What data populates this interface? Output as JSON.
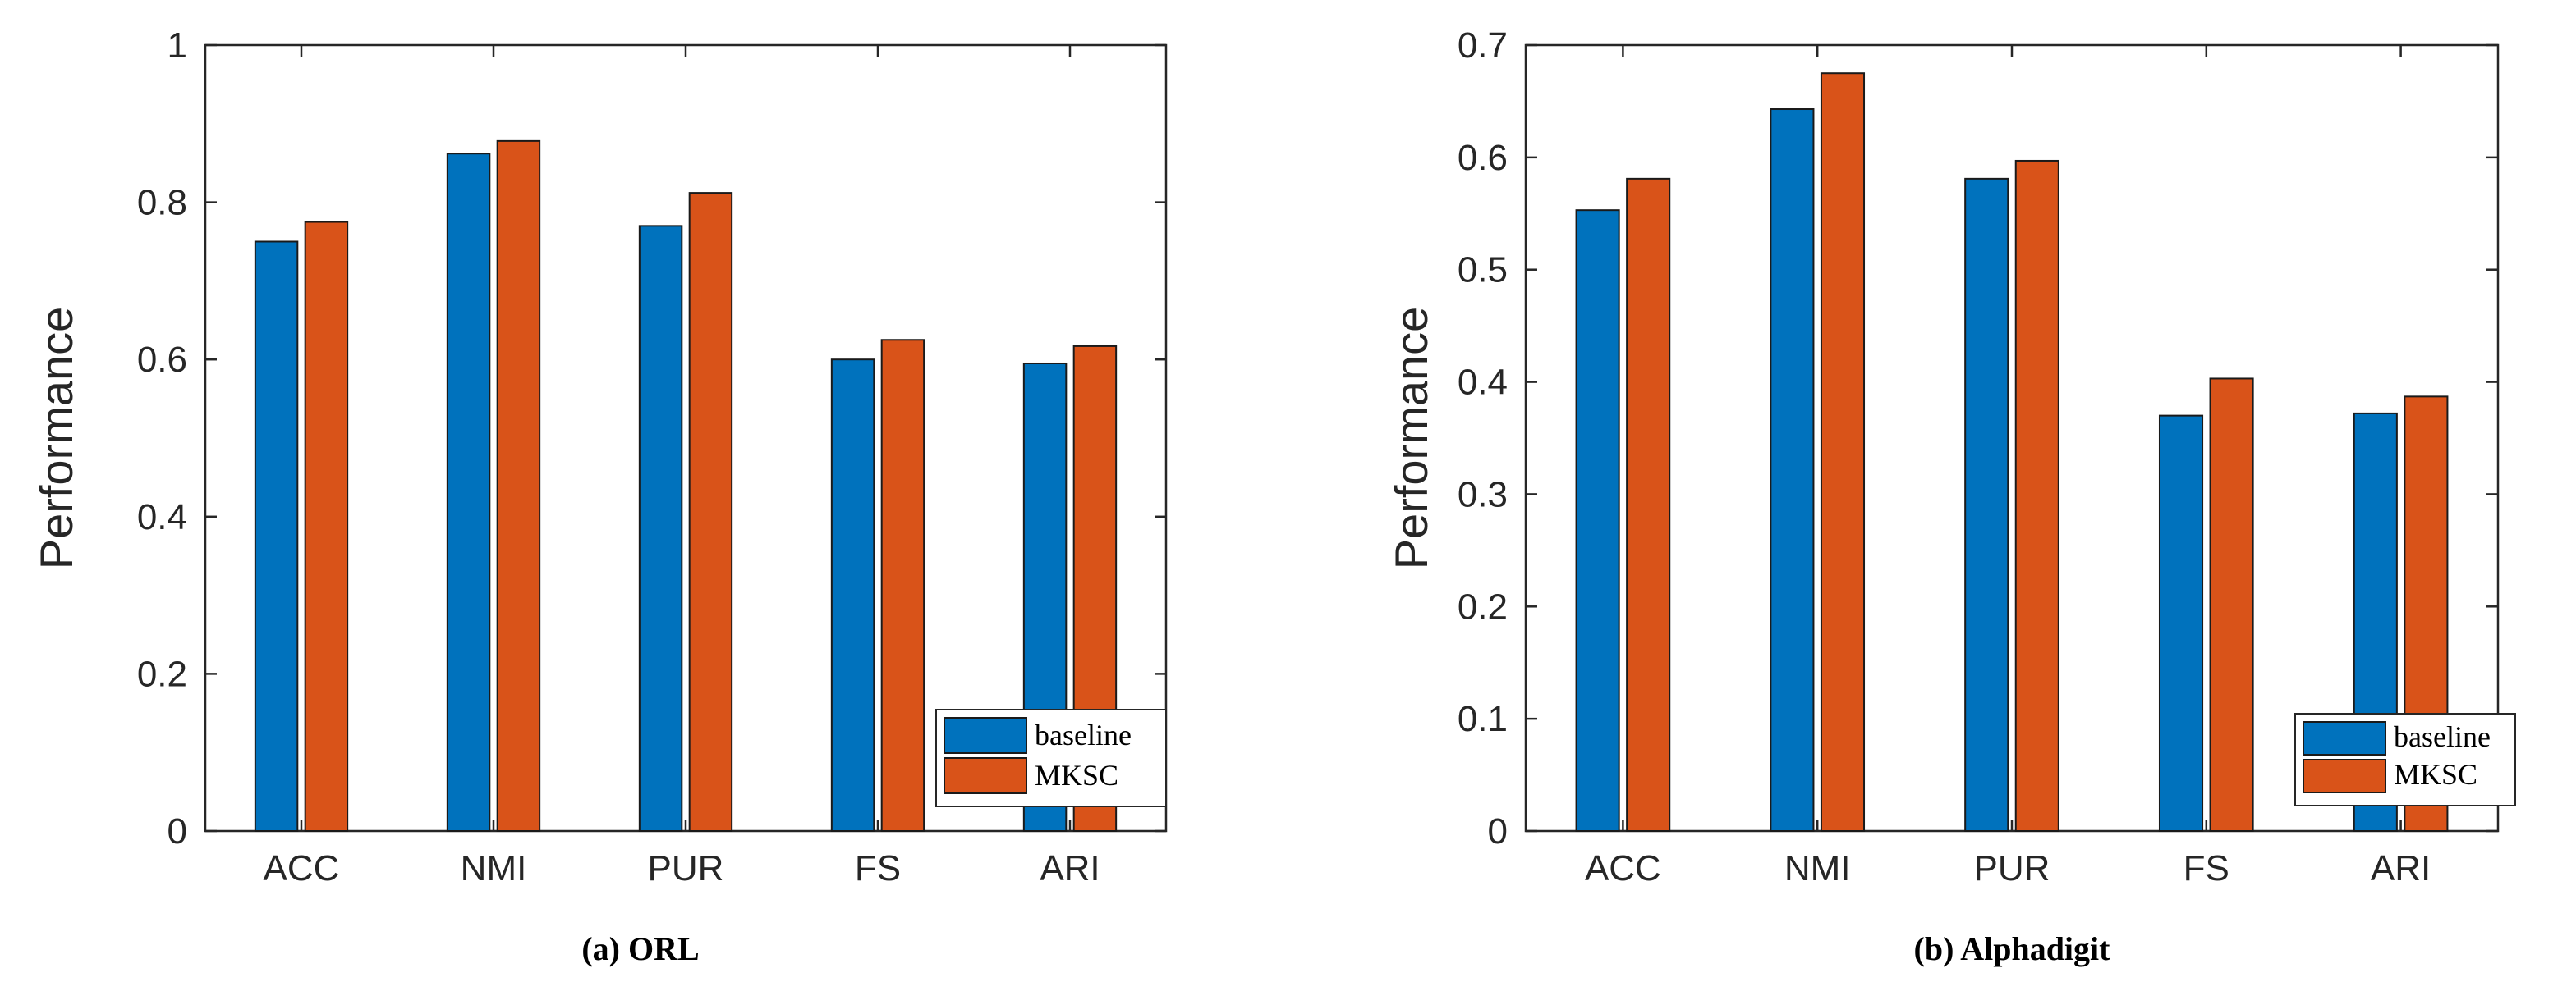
{
  "chart_data": [
    {
      "type": "bar",
      "caption": "(a)  ORL",
      "categories": [
        "ACC",
        "NMI",
        "PUR",
        "FS",
        "ARI"
      ],
      "series": [
        {
          "name": "baseline",
          "values": [
            0.75,
            0.862,
            0.77,
            0.6,
            0.595
          ]
        },
        {
          "name": "MKSC",
          "values": [
            0.775,
            0.878,
            0.812,
            0.625,
            0.617
          ]
        }
      ],
      "ylabel": "Performance",
      "xlabel": "",
      "ylim": [
        0,
        1
      ],
      "yticks": [
        0,
        0.2,
        0.4,
        0.6,
        0.8,
        1
      ],
      "ytick_labels": [
        "0",
        "0.2",
        "0.4",
        "0.6",
        "0.8",
        "1"
      ],
      "legend_position": "bottom-right",
      "grid": false
    },
    {
      "type": "bar",
      "caption": "(b)  Alphadigit",
      "categories": [
        "ACC",
        "NMI",
        "PUR",
        "FS",
        "ARI"
      ],
      "series": [
        {
          "name": "baseline",
          "values": [
            0.553,
            0.643,
            0.581,
            0.37,
            0.372
          ]
        },
        {
          "name": "MKSC",
          "values": [
            0.581,
            0.675,
            0.597,
            0.403,
            0.387
          ]
        }
      ],
      "ylabel": "Performance",
      "xlabel": "",
      "ylim": [
        0,
        0.7
      ],
      "yticks": [
        0,
        0.1,
        0.2,
        0.3,
        0.4,
        0.5,
        0.6,
        0.7
      ],
      "ytick_labels": [
        "0",
        "0.1",
        "0.2",
        "0.3",
        "0.4",
        "0.5",
        "0.6",
        "0.7"
      ],
      "legend_position": "bottom-right",
      "grid": false
    }
  ],
  "colors": {
    "baseline": "#0072BD",
    "MKSC": "#D95319"
  }
}
